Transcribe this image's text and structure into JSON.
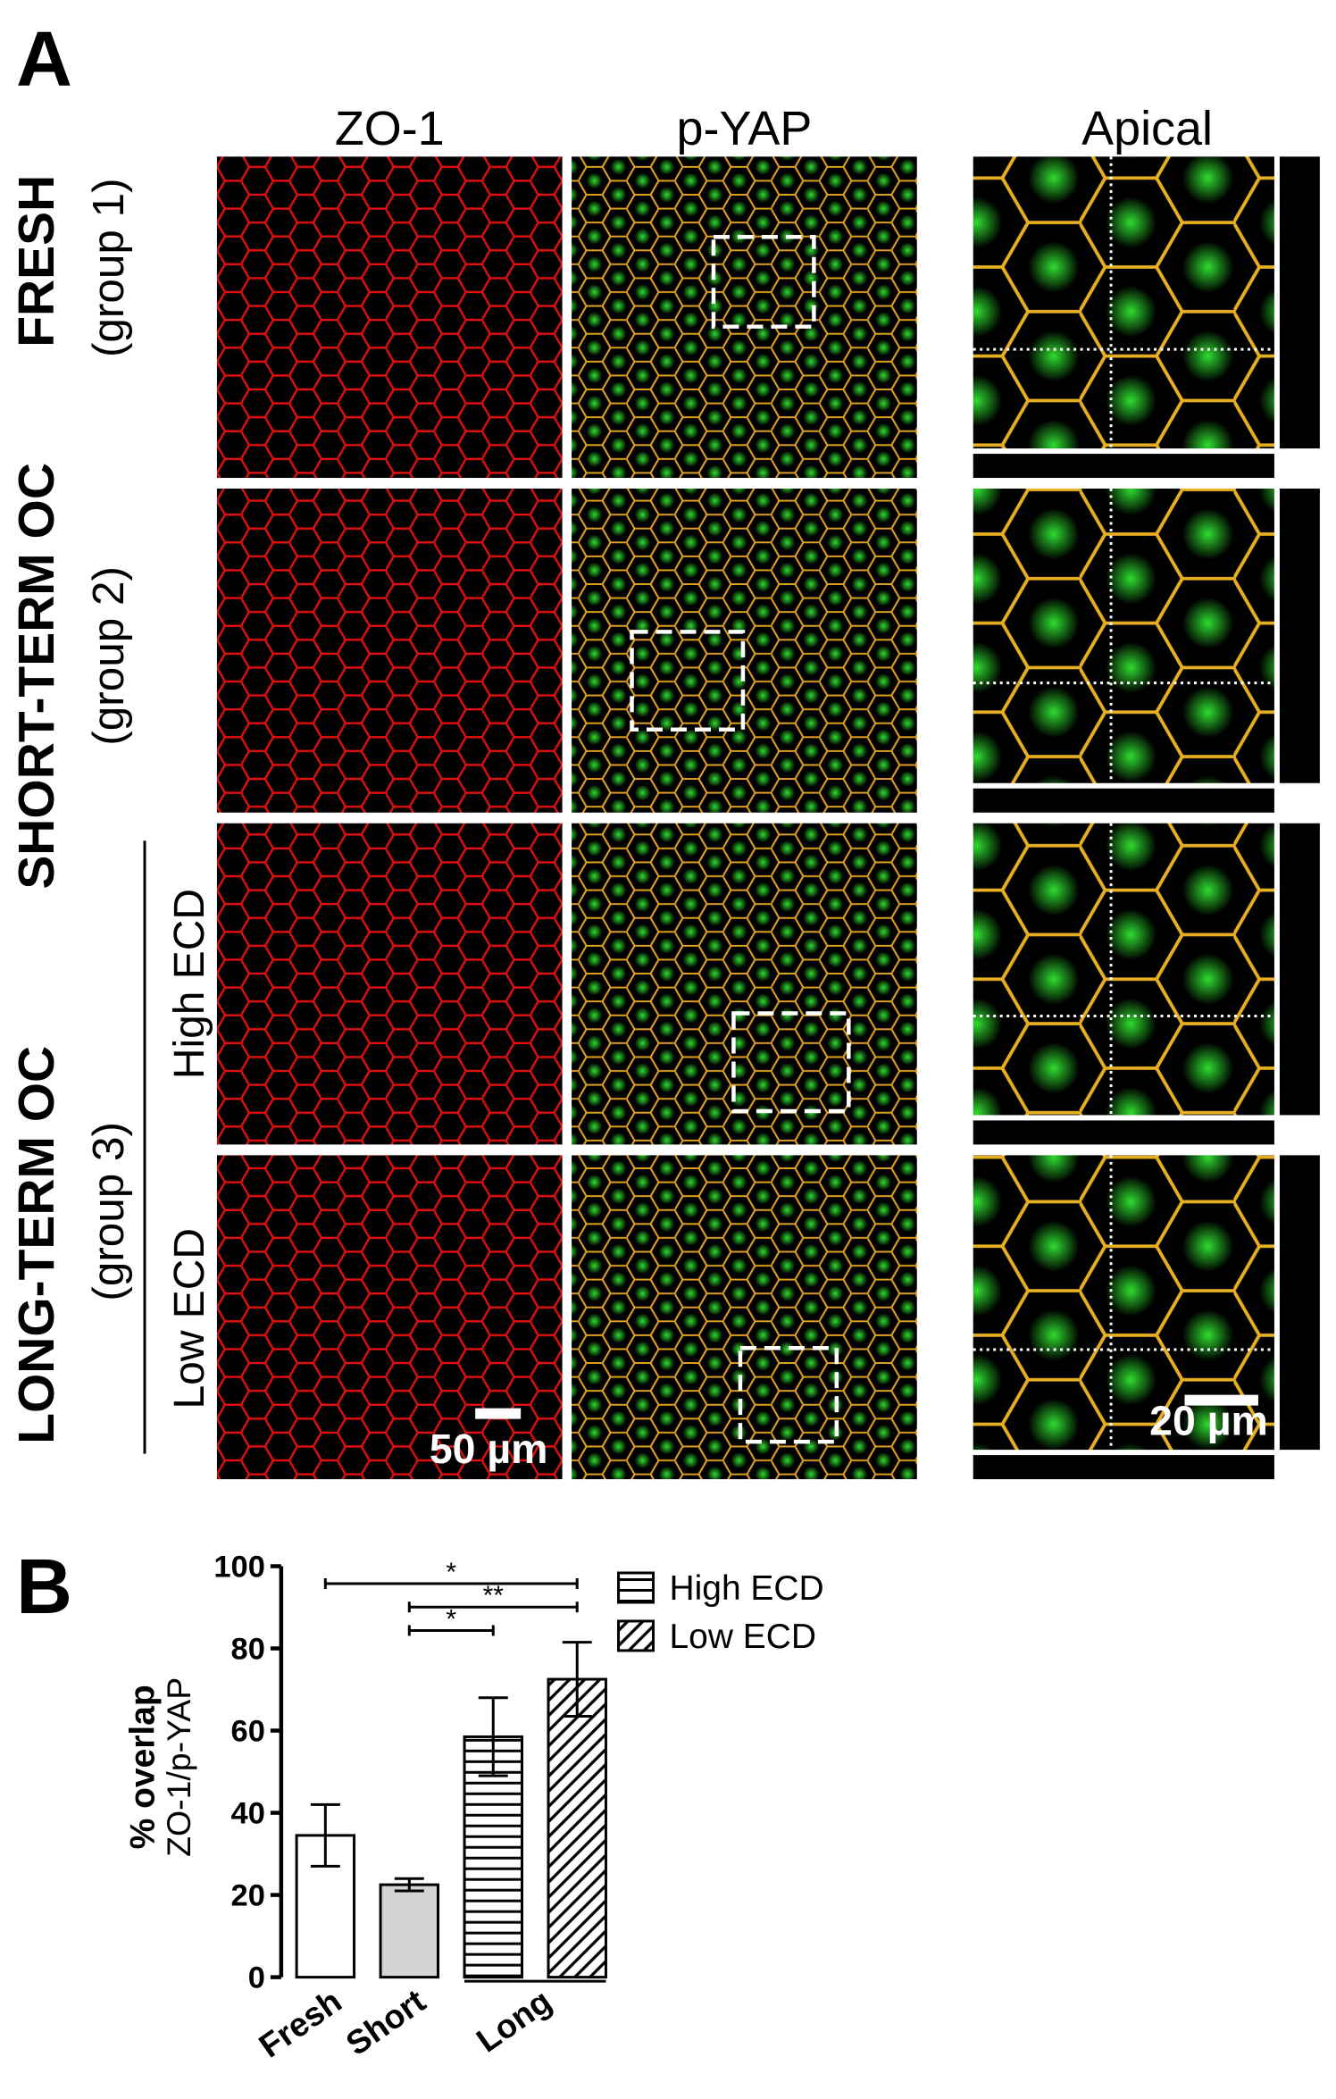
{
  "panel_a": {
    "label": "A",
    "columns": [
      "ZO-1",
      "p-YAP",
      "Apical"
    ],
    "groups": [
      {
        "title": "FRESH",
        "subtitle": "(group 1)"
      },
      {
        "title": "SHORT-TERM OC",
        "subtitle": "(group 2)"
      },
      {
        "title": "LONG-TERM OC",
        "subtitle": "(group 3)"
      }
    ],
    "subgroups": [
      "High ECD",
      "Low ECD"
    ],
    "scale_bars": [
      "50 µm",
      "20 µm"
    ]
  },
  "panel_b": {
    "label": "B"
  },
  "chart_data": {
    "type": "bar",
    "ylabel": [
      "% overlap",
      "ZO-1/p-YAP"
    ],
    "categories": [
      "Fresh",
      "Short",
      "Long",
      null
    ],
    "values": [
      34.5,
      22.5,
      58.5,
      72.5
    ],
    "errors": [
      7.5,
      1.5,
      9.5,
      9
    ],
    "fills": [
      "#ffffff",
      "#d3d3d3",
      "#ffffff",
      "#ffffff"
    ],
    "patterns": [
      "none",
      "none",
      "horizontal",
      "diagonal"
    ],
    "legend": [
      {
        "label": "High ECD",
        "pattern": "horizontal"
      },
      {
        "label": "Low ECD",
        "pattern": "diagonal"
      }
    ],
    "significance": [
      {
        "from": 0,
        "to": 3,
        "label": "*"
      },
      {
        "from": 1,
        "to": 3,
        "label": "**"
      },
      {
        "from": 1,
        "to": 2,
        "label": "*"
      }
    ],
    "ylim": [
      0,
      100
    ],
    "yticks": [
      0,
      20,
      40,
      60,
      80,
      100
    ]
  }
}
